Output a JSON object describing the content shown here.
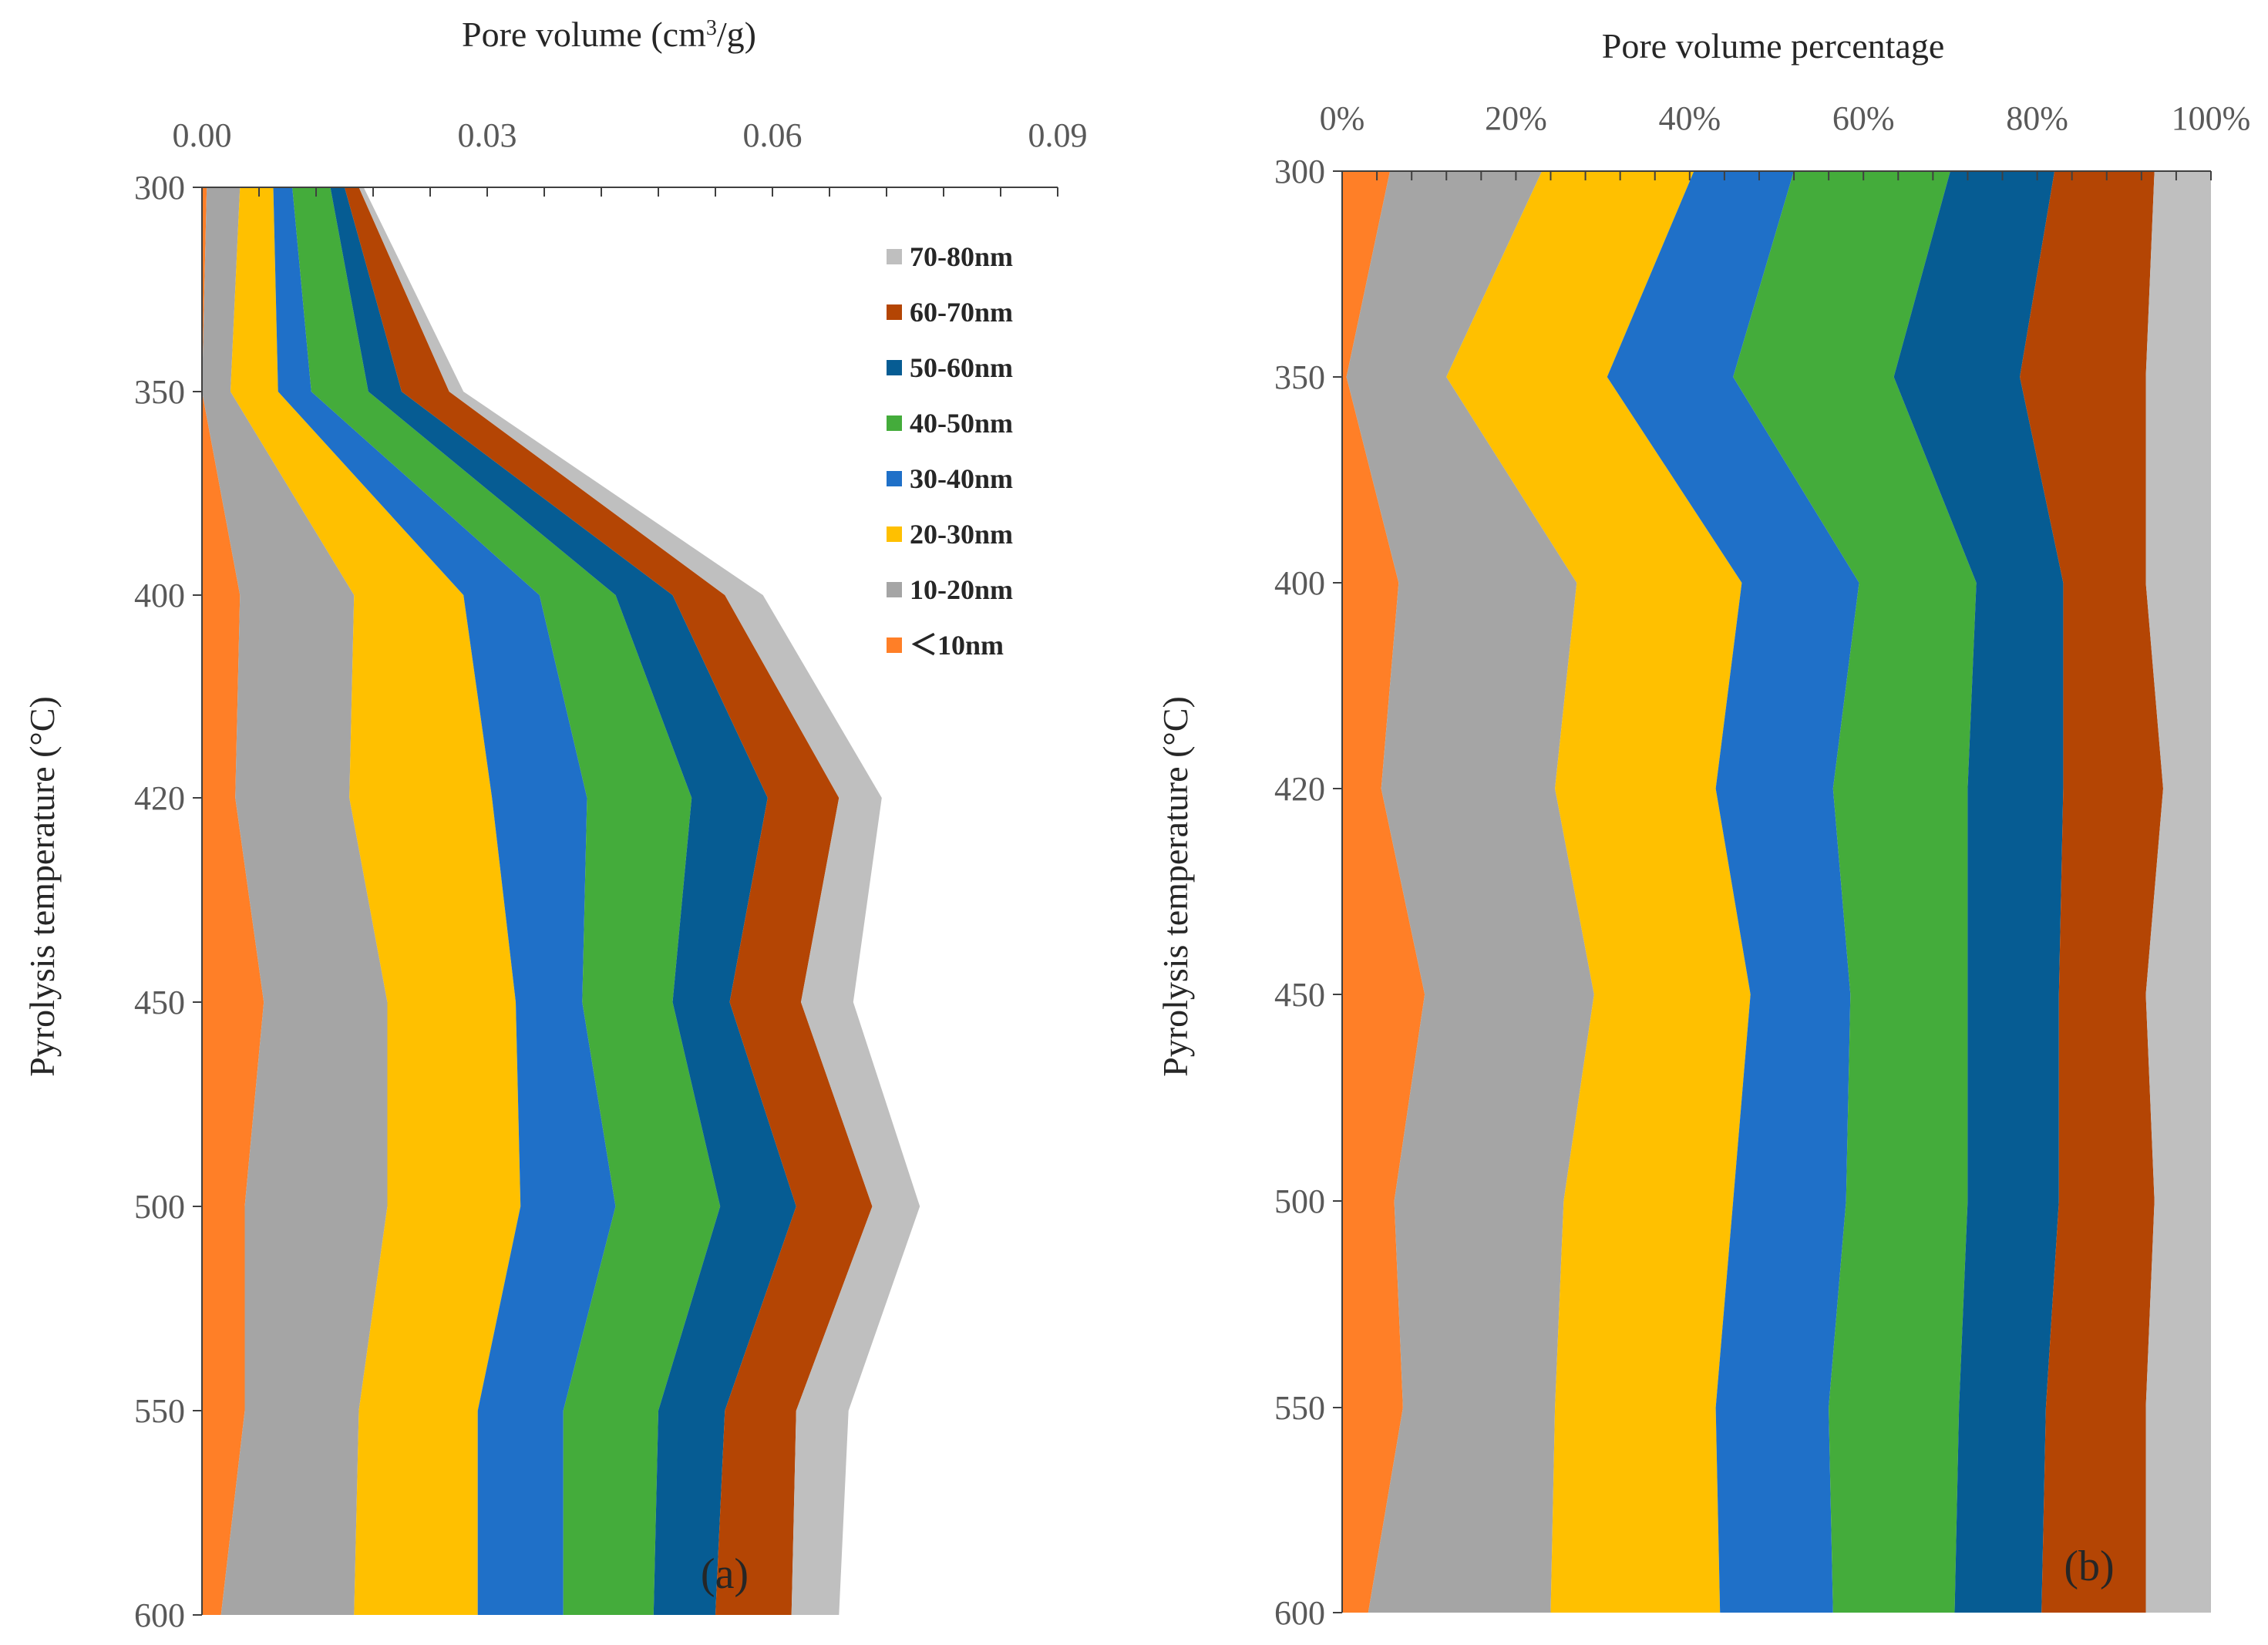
{
  "chart_data": [
    {
      "type": "area",
      "orientation": "vertical-stacked",
      "panel_label": "(a)",
      "title": "",
      "xlabel": "Pore volume (cm3/g)",
      "xlabel_parts": {
        "base": "Pore volume (cm",
        "sup": "3",
        "tail": "/g)"
      },
      "ylabel": "Pyrolysis  temperature (°C)",
      "xlim": [
        0,
        0.09
      ],
      "x_tick_labels": [
        "0.00",
        "0.03",
        "0.06",
        "0.09"
      ],
      "x_ticks": [
        0,
        0.03,
        0.06,
        0.09
      ],
      "x_minor_step": 0.006,
      "y_tick_labels": [
        "300",
        "350",
        "400",
        "420",
        "450",
        "500",
        "550",
        "600"
      ],
      "categories": [
        "300",
        "350",
        "400",
        "420",
        "450",
        "500",
        "550",
        "600"
      ],
      "cumulative": true,
      "series": [
        {
          "name": "＜10nm",
          "color": "#FF7F27",
          "values": [
            0.0005,
            0.0,
            0.004,
            0.0035,
            0.0065,
            0.0045,
            0.0045,
            0.002
          ]
        },
        {
          "name": "10-20nm",
          "color": "#A5A5A5",
          "values": [
            0.004,
            0.003,
            0.016,
            0.0155,
            0.0195,
            0.0195,
            0.0165,
            0.016
          ]
        },
        {
          "name": "20-30nm",
          "color": "#FFC000",
          "values": [
            0.0075,
            0.008,
            0.0275,
            0.0305,
            0.033,
            0.0335,
            0.029,
            0.029
          ]
        },
        {
          "name": "30-40nm",
          "color": "#1F70C8",
          "values": [
            0.0095,
            0.0115,
            0.0355,
            0.0405,
            0.04,
            0.0435,
            0.038,
            0.038
          ]
        },
        {
          "name": "40-50nm",
          "color": "#44AC3B",
          "values": [
            0.0135,
            0.0175,
            0.0435,
            0.0515,
            0.0495,
            0.0545,
            0.048,
            0.0475
          ]
        },
        {
          "name": "50-60nm",
          "color": "#065C93",
          "values": [
            0.015,
            0.021,
            0.0495,
            0.0595,
            0.0555,
            0.0625,
            0.055,
            0.054
          ]
        },
        {
          "name": "60-70nm",
          "color": "#B44504",
          "values": [
            0.0165,
            0.026,
            0.055,
            0.067,
            0.063,
            0.0705,
            0.0625,
            0.062
          ]
        },
        {
          "name": "70-80nm",
          "color": "#BFBFBF",
          "values": [
            0.017,
            0.0275,
            0.059,
            0.0715,
            0.0685,
            0.0755,
            0.068,
            0.067
          ]
        }
      ],
      "legend": {
        "position": "top-right",
        "entries": [
          "70-80nm",
          "60-70nm",
          "50-60nm",
          "40-50nm",
          "30-40nm",
          "20-30nm",
          "10-20nm",
          "＜10nm"
        ]
      }
    },
    {
      "type": "area",
      "orientation": "vertical-stacked",
      "panel_label": "(b)",
      "title": "",
      "xlabel": "Pore volume percentage",
      "ylabel": "Pyrolysis  temperature (°C)",
      "xlim": [
        0,
        100
      ],
      "x_tick_labels": [
        "0%",
        "20%",
        "40%",
        "60%",
        "80%",
        "100%"
      ],
      "x_ticks": [
        0,
        20,
        40,
        60,
        80,
        100
      ],
      "x_minor_step": 4,
      "y_tick_labels": [
        "300",
        "350",
        "400",
        "420",
        "450",
        "500",
        "550",
        "600"
      ],
      "categories": [
        "300",
        "350",
        "400",
        "420",
        "450",
        "500",
        "550",
        "600"
      ],
      "cumulative": true,
      "series": [
        {
          "name": "＜10nm",
          "color": "#FF7F27",
          "values": [
            5.5,
            0.5,
            6.5,
            4.5,
            9.5,
            6.0,
            7.0,
            3.0
          ]
        },
        {
          "name": "10-20nm",
          "color": "#A5A5A5",
          "values": [
            23.0,
            12.0,
            27.0,
            24.5,
            29.0,
            25.5,
            24.5,
            24.0
          ]
        },
        {
          "name": "20-30nm",
          "color": "#FFC000",
          "values": [
            40.5,
            30.5,
            46.0,
            43.0,
            47.0,
            45.0,
            43.0,
            43.5
          ]
        },
        {
          "name": "30-40nm",
          "color": "#1F70C8",
          "values": [
            52.0,
            45.0,
            59.5,
            56.5,
            58.5,
            58.0,
            56.0,
            56.5
          ]
        },
        {
          "name": "40-50nm",
          "color": "#44AC3B",
          "values": [
            70.0,
            63.5,
            73.0,
            72.0,
            72.0,
            72.0,
            71.0,
            70.5
          ]
        },
        {
          "name": "50-60nm",
          "color": "#065C93",
          "values": [
            82.0,
            78.0,
            83.0,
            83.0,
            82.5,
            82.5,
            81.0,
            80.5
          ]
        },
        {
          "name": "60-70nm",
          "color": "#B44504",
          "values": [
            93.5,
            92.5,
            92.5,
            94.5,
            92.5,
            93.5,
            92.5,
            92.5
          ]
        },
        {
          "name": "70-80nm",
          "color": "#BFBFBF",
          "values": [
            100,
            100,
            100,
            100,
            100,
            100,
            100,
            100
          ]
        }
      ]
    }
  ]
}
